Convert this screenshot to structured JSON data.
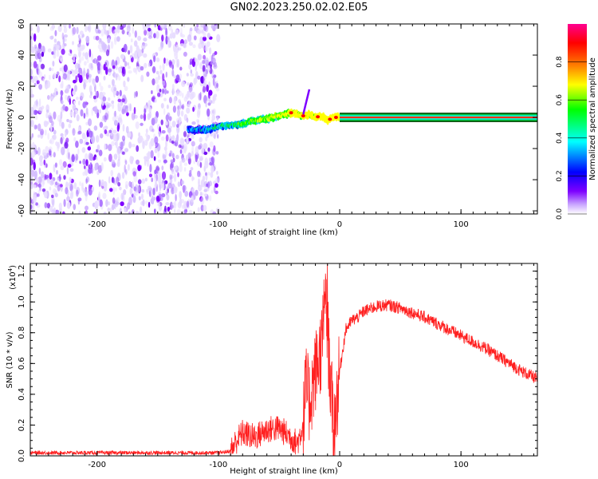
{
  "title": "GN02.2023.250.02.02.E05",
  "chart_data": [
    {
      "type": "heatmap",
      "title": "GN02.2023.250.02.02.E05",
      "xlabel": "Height of straight line (km)",
      "ylabel": "Frequency (Hz)",
      "xlim": [
        -255,
        163
      ],
      "ylim": [
        -62,
        60
      ],
      "x_ticks": [
        -200,
        -100,
        0,
        100
      ],
      "x_tick_labels": [
        "-200",
        "-100",
        "0",
        "100"
      ],
      "y_ticks": [
        -60,
        -40,
        -20,
        0,
        20,
        40,
        60
      ],
      "y_tick_labels": [
        "-60",
        "-40",
        "-20",
        "0",
        "20",
        "40",
        "60"
      ],
      "noise_region_km": [
        -255,
        -100
      ],
      "ridge": {
        "x": [
          -125,
          -110,
          -100,
          -90,
          -80,
          -70,
          -60,
          -50,
          -40,
          -30,
          -25,
          -20,
          -15,
          -10,
          -5,
          0,
          50,
          100,
          163
        ],
        "y": [
          -8,
          -8,
          -6,
          -5,
          -4,
          -2,
          -1,
          1,
          3,
          1,
          2,
          0,
          1,
          -2,
          0,
          0,
          0,
          0,
          0
        ]
      },
      "spike": {
        "x": [
          -30,
          -25
        ],
        "y": [
          2,
          18
        ]
      },
      "colorbar": {
        "label": "Normalized spectral amplitude",
        "ticks": [
          0.0,
          0.2,
          0.4,
          0.6,
          0.8
        ],
        "tick_labels": [
          "0.0",
          "0.2",
          "0.4",
          "0.6",
          "0.8"
        ],
        "range": [
          0,
          1
        ],
        "colors": [
          "#ffffff",
          "#7d00ff",
          "#0000ff",
          "#00ffff",
          "#00ff00",
          "#ffff00",
          "#ff8000",
          "#ff0000",
          "#ff0090"
        ]
      },
      "grid": false
    },
    {
      "type": "line",
      "xlabel": "Height of straight line (km)",
      "ylabel": "SNR (10 * v/v)",
      "y_scale_label": "(x10",
      "y_scale_exponent": "4",
      "y_scale_suffix": ")",
      "xlim": [
        -255,
        163
      ],
      "ylim": [
        0,
        1.25
      ],
      "x_ticks": [
        -200,
        -100,
        0,
        100
      ],
      "x_tick_labels": [
        "-200",
        "-100",
        "0",
        "100"
      ],
      "y_ticks": [
        0,
        0.2,
        0.4,
        0.6,
        0.8,
        1.0,
        1.2
      ],
      "y_tick_labels": [
        "0.0",
        "0.2",
        "0.4",
        "0.6",
        "0.8",
        "1.0",
        "1.2"
      ],
      "series": [
        {
          "color": "#ff2020",
          "x": [
            -255,
            -150,
            -100,
            -90,
            -85,
            -80,
            -70,
            -60,
            -50,
            -40,
            -35,
            -30,
            -28,
            -25,
            -20,
            -15,
            -12,
            -10,
            -8,
            -5,
            0,
            5,
            10,
            15,
            20,
            30,
            40,
            50,
            60,
            70,
            80,
            90,
            100,
            110,
            120,
            130,
            140,
            150,
            163
          ],
          "y": [
            0.02,
            0.02,
            0.02,
            0.03,
            0.1,
            0.15,
            0.12,
            0.17,
            0.18,
            0.12,
            0.08,
            0.2,
            0.45,
            0.35,
            0.55,
            0.7,
            0.98,
            0.8,
            0.55,
            0.15,
            0.55,
            0.82,
            0.88,
            0.9,
            0.94,
            0.97,
            0.98,
            0.96,
            0.93,
            0.9,
            0.86,
            0.82,
            0.78,
            0.74,
            0.7,
            0.65,
            0.6,
            0.55,
            0.5
          ]
        }
      ],
      "grid": false
    }
  ]
}
